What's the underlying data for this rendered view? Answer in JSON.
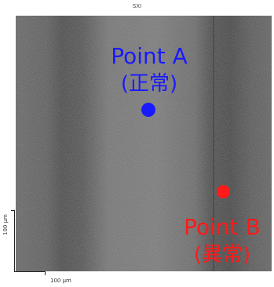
{
  "title": "SXI",
  "scale_bar_y": "100 µm",
  "scale_bar_x": "100 µm",
  "points": [
    {
      "name": "Point A",
      "sub": "(正常)",
      "color": "#1a1aff"
    },
    {
      "name": "Point B",
      "sub": "(異常)",
      "color": "#ff1a1a"
    }
  ]
}
